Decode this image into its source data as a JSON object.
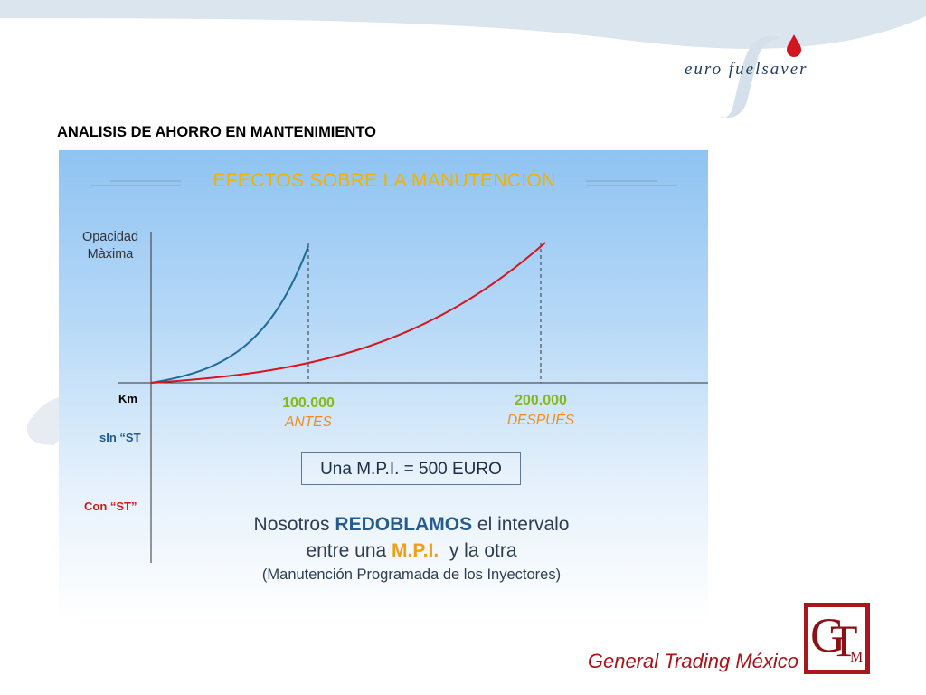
{
  "brand": {
    "logo_text": "euro fuelsaver",
    "accent": "#d2141e"
  },
  "slide_title": "ANALISIS DE AHORRO EN MANTENIMIENTO",
  "diagram": {
    "title": "EFECTOS SOBRE LA MANUTENCIÓN",
    "ylabel_line1": "Opacidad",
    "ylabel_line2": "Màxima",
    "row_km": "Km",
    "row_sin": "sIn “ST",
    "row_con": "Con “ST”",
    "tick1_value": "100.000",
    "tick1_label": "ANTES",
    "tick2_value": "200.000",
    "tick2_label": "DESPUÉS",
    "mpi_box": "Una M.P.I. = 500 EURO",
    "summary": {
      "line1_pre": "Nosotros ",
      "line1_em": "REDOBLAMOS",
      "line1_post": " el intervalo",
      "line2_pre": "entre una ",
      "line2_em": "M.P.I.",
      "line2_post": "  y la otra",
      "line3": "(Manutención Programada de los Inyectores)"
    },
    "colors": {
      "sin_curve": "#1e6a9a",
      "con_curve": "#d8141c"
    }
  },
  "footer": {
    "company": "General Trading México",
    "logo_letters": {
      "g": "G",
      "t": "T",
      "m": "M"
    }
  }
}
